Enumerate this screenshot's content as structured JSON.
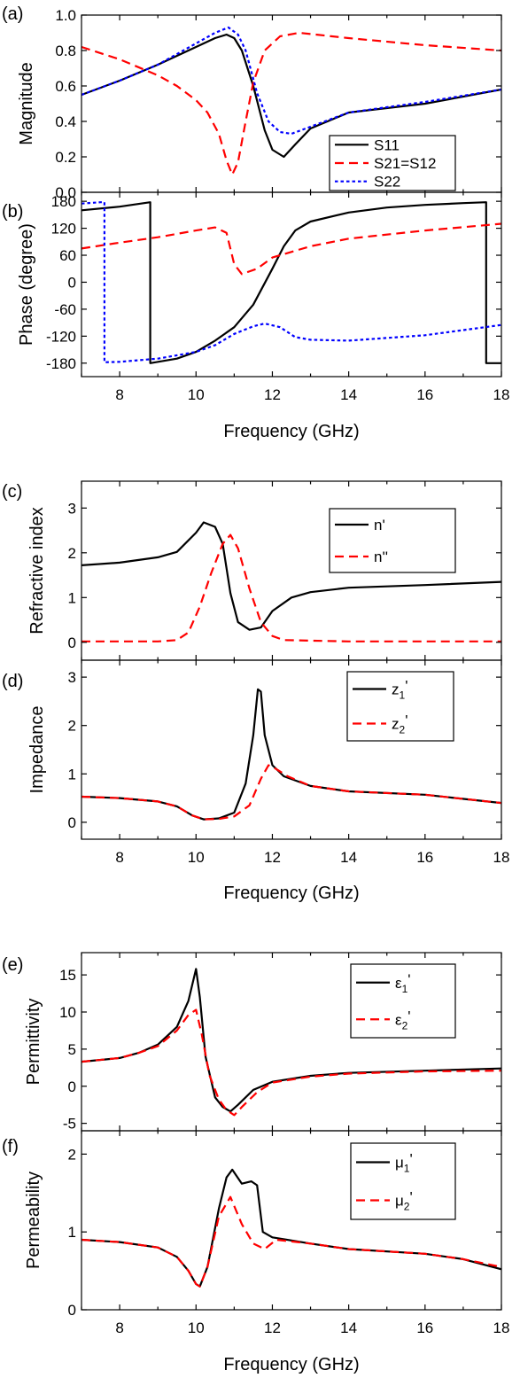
{
  "chart_data": [
    {
      "panel_label": "(a)",
      "type": "line",
      "ylabel": "Magnitude",
      "xlim": [
        7,
        18
      ],
      "ylim": [
        0,
        1.0
      ],
      "yticks": [
        "0.0",
        "0.2",
        "0.4",
        "0.6",
        "0.8",
        "1.0"
      ],
      "ytick_values": [
        0,
        0.2,
        0.4,
        0.6,
        0.8,
        1.0
      ],
      "legend_position": "bottom-right",
      "series": [
        {
          "name": "S11",
          "color": "#000000",
          "dash": "solid",
          "x": [
            7,
            8,
            9,
            10,
            10.5,
            10.8,
            11.0,
            11.2,
            11.5,
            11.8,
            12.0,
            12.3,
            12.6,
            13.0,
            14.0,
            16.0,
            18.0
          ],
          "y": [
            0.55,
            0.63,
            0.72,
            0.82,
            0.87,
            0.89,
            0.87,
            0.8,
            0.6,
            0.35,
            0.24,
            0.2,
            0.27,
            0.36,
            0.45,
            0.5,
            0.58
          ]
        },
        {
          "name": "S21=S12",
          "color": "#ff0000",
          "dash": "dashed",
          "x": [
            7,
            8,
            9,
            9.5,
            10,
            10.3,
            10.6,
            10.8,
            10.95,
            11.1,
            11.3,
            11.5,
            11.8,
            12.2,
            12.7,
            14.0,
            16.0,
            18.0
          ],
          "y": [
            0.82,
            0.75,
            0.66,
            0.6,
            0.52,
            0.45,
            0.33,
            0.18,
            0.1,
            0.17,
            0.4,
            0.62,
            0.8,
            0.88,
            0.9,
            0.87,
            0.83,
            0.8
          ]
        },
        {
          "name": "S22",
          "color": "#0000ff",
          "dash": "dotted",
          "x": [
            7,
            8,
            9,
            10,
            10.5,
            10.85,
            11.1,
            11.3,
            11.6,
            11.9,
            12.2,
            12.5,
            13.0,
            14.0,
            16.0,
            18.0
          ],
          "y": [
            0.55,
            0.63,
            0.72,
            0.84,
            0.9,
            0.93,
            0.89,
            0.8,
            0.56,
            0.4,
            0.34,
            0.33,
            0.37,
            0.45,
            0.51,
            0.58
          ]
        }
      ]
    },
    {
      "panel_label": "(b)",
      "type": "line",
      "ylabel": "Phase (degree)",
      "xlim": [
        7,
        18
      ],
      "ylim": [
        -210,
        200
      ],
      "yticks": [
        "180",
        "120",
        "60",
        "0",
        "-60",
        "-120",
        "-180"
      ],
      "ytick_values": [
        180,
        120,
        60,
        0,
        -60,
        -120,
        -180
      ],
      "xticks": [
        "8",
        "10",
        "12",
        "14",
        "16",
        "18"
      ],
      "xtick_values": [
        8,
        10,
        12,
        14,
        16,
        18
      ],
      "xlabel": "Frequency (GHz)",
      "series": [
        {
          "name": "S11",
          "color": "#000000",
          "dash": "solid",
          "x": [
            7,
            8,
            8.8,
            8.8,
            9.5,
            10,
            10.5,
            11,
            11.5,
            12,
            12.3,
            12.6,
            13,
            14,
            15,
            16,
            17,
            17.6,
            17.6,
            18
          ],
          "y": [
            160,
            168,
            178,
            -180,
            -170,
            -155,
            -130,
            -100,
            -50,
            30,
            80,
            115,
            135,
            155,
            166,
            172,
            176,
            178,
            -180,
            -180
          ]
        },
        {
          "name": "S21=S12",
          "color": "#ff0000",
          "dash": "dashed",
          "x": [
            7,
            8,
            9,
            10,
            10.5,
            10.8,
            11.0,
            11.2,
            11.6,
            12,
            13,
            14,
            16,
            18
          ],
          "y": [
            75,
            88,
            100,
            115,
            122,
            110,
            40,
            18,
            30,
            55,
            80,
            97,
            115,
            130
          ]
        },
        {
          "name": "S22",
          "color": "#0000ff",
          "dash": "dotted",
          "x": [
            7,
            7.5,
            7.6,
            7.6,
            8,
            9,
            10,
            10.5,
            11,
            11.5,
            11.8,
            12.2,
            12.6,
            13,
            14,
            16,
            18
          ],
          "y": [
            175,
            178,
            178,
            -178,
            -177,
            -170,
            -155,
            -140,
            -115,
            -98,
            -92,
            -100,
            -122,
            -128,
            -130,
            -118,
            -95
          ]
        }
      ]
    },
    {
      "panel_label": "(c)",
      "type": "line",
      "ylabel": "Refractive index",
      "xlim": [
        7,
        18
      ],
      "ylim": [
        -0.4,
        3.6
      ],
      "yticks": [
        "0",
        "1",
        "2",
        "3"
      ],
      "ytick_values": [
        0,
        1,
        2,
        3
      ],
      "legend_position": "top-right",
      "series": [
        {
          "name": "n'",
          "color": "#000000",
          "dash": "solid",
          "x": [
            7,
            8,
            9,
            9.5,
            10,
            10.2,
            10.5,
            10.7,
            10.9,
            11.1,
            11.4,
            11.7,
            12.0,
            12.5,
            13,
            14,
            16,
            18
          ],
          "y": [
            1.72,
            1.78,
            1.9,
            2.02,
            2.45,
            2.68,
            2.58,
            2.2,
            1.1,
            0.45,
            0.28,
            0.33,
            0.7,
            1.0,
            1.12,
            1.22,
            1.28,
            1.35
          ]
        },
        {
          "name": "n''",
          "color": "#ff0000",
          "dash": "dashed",
          "x": [
            7,
            9,
            9.5,
            9.8,
            10.1,
            10.4,
            10.7,
            10.9,
            11.1,
            11.4,
            11.7,
            12.0,
            12.3,
            14,
            18
          ],
          "y": [
            0.02,
            0.02,
            0.05,
            0.22,
            0.8,
            1.55,
            2.2,
            2.4,
            2.1,
            1.2,
            0.45,
            0.14,
            0.05,
            0.02,
            0.02
          ]
        }
      ]
    },
    {
      "panel_label": "(d)",
      "type": "line",
      "ylabel": "Impedance",
      "xlim": [
        7,
        18
      ],
      "ylim": [
        -0.35,
        3.35
      ],
      "yticks": [
        "0",
        "1",
        "2",
        "3"
      ],
      "ytick_values": [
        0,
        1,
        2,
        3
      ],
      "xticks": [
        "8",
        "10",
        "12",
        "14",
        "16",
        "18"
      ],
      "xtick_values": [
        8,
        10,
        12,
        14,
        16,
        18
      ],
      "xlabel": "Frequency (GHz)",
      "legend_position": "top-right",
      "series": [
        {
          "name": "z1'",
          "legend_main": "z",
          "legend_sub": "1",
          "legend_tail": "'",
          "color": "#000000",
          "dash": "solid",
          "x": [
            7,
            8,
            9,
            9.5,
            9.9,
            10.2,
            10.6,
            11.0,
            11.3,
            11.5,
            11.62,
            11.7,
            11.8,
            12.0,
            12.3,
            13,
            14,
            16,
            18
          ],
          "y": [
            0.53,
            0.5,
            0.43,
            0.33,
            0.14,
            0.06,
            0.08,
            0.2,
            0.8,
            1.8,
            2.75,
            2.7,
            1.8,
            1.18,
            0.95,
            0.75,
            0.64,
            0.57,
            0.4
          ]
        },
        {
          "name": "z2'",
          "legend_main": "z",
          "legend_sub": "2",
          "legend_tail": "'",
          "color": "#ff0000",
          "dash": "dashed",
          "x": [
            7,
            8,
            9,
            9.5,
            9.9,
            10.2,
            10.6,
            11.0,
            11.4,
            11.7,
            11.9,
            12.1,
            12.4,
            13,
            14,
            16,
            18
          ],
          "y": [
            0.53,
            0.5,
            0.43,
            0.33,
            0.14,
            0.06,
            0.07,
            0.12,
            0.35,
            0.9,
            1.18,
            1.1,
            0.95,
            0.75,
            0.64,
            0.57,
            0.4
          ]
        }
      ]
    },
    {
      "panel_label": "(e)",
      "type": "line",
      "ylabel": "Permittivity",
      "xlim": [
        7,
        18
      ],
      "ylim": [
        -6,
        18
      ],
      "yticks": [
        "15",
        "10",
        "5",
        "0",
        "-5"
      ],
      "ytick_values": [
        15,
        10,
        5,
        0,
        -5
      ],
      "legend_position": "top-right",
      "series": [
        {
          "name": "ε1'",
          "legend_main": "ε",
          "legend_sub": "1",
          "legend_tail": "'",
          "color": "#000000",
          "dash": "solid",
          "x": [
            7,
            8,
            8.5,
            9,
            9.5,
            9.8,
            10.0,
            10.1,
            10.25,
            10.5,
            10.7,
            10.9,
            11.1,
            11.5,
            12,
            13,
            14,
            16,
            18
          ],
          "y": [
            3.3,
            3.8,
            4.5,
            5.6,
            8.0,
            11.5,
            15.8,
            12.0,
            4.0,
            -1.5,
            -2.8,
            -3.4,
            -2.5,
            -0.5,
            0.6,
            1.4,
            1.8,
            2.1,
            2.4
          ]
        },
        {
          "name": "ε2'",
          "legend_main": "ε",
          "legend_sub": "2",
          "legend_tail": "'",
          "color": "#ff0000",
          "dash": "dashed",
          "x": [
            7,
            8,
            8.5,
            9,
            9.5,
            9.8,
            10.0,
            10.15,
            10.35,
            10.6,
            10.8,
            11.0,
            11.2,
            11.6,
            12,
            13,
            14,
            16,
            18
          ],
          "y": [
            3.3,
            3.8,
            4.5,
            5.4,
            7.5,
            9.6,
            10.3,
            7.0,
            1.5,
            -1.8,
            -3.2,
            -3.9,
            -2.8,
            -0.8,
            0.5,
            1.3,
            1.7,
            2.0,
            2.1
          ]
        }
      ]
    },
    {
      "panel_label": "(f)",
      "type": "line",
      "ylabel": "Permeability",
      "xlim": [
        7,
        18
      ],
      "ylim": [
        0,
        2.3
      ],
      "yticks": [
        "2",
        "1",
        "0"
      ],
      "ytick_values": [
        2,
        1,
        0
      ],
      "xticks": [
        "8",
        "10",
        "12",
        "14",
        "16",
        "18"
      ],
      "xtick_values": [
        8,
        10,
        12,
        14,
        16,
        18
      ],
      "xlabel": "Frequency (GHz)",
      "legend_position": "top-right",
      "series": [
        {
          "name": "μ1'",
          "legend_main": "μ",
          "legend_sub": "1",
          "legend_tail": "'",
          "color": "#000000",
          "dash": "solid",
          "x": [
            7,
            8,
            9,
            9.5,
            9.8,
            10.0,
            10.1,
            10.3,
            10.6,
            10.8,
            10.95,
            11.2,
            11.45,
            11.6,
            11.75,
            12.0,
            13,
            14,
            16,
            17,
            18
          ],
          "y": [
            0.9,
            0.87,
            0.8,
            0.68,
            0.5,
            0.33,
            0.3,
            0.55,
            1.3,
            1.7,
            1.8,
            1.62,
            1.65,
            1.6,
            1.0,
            0.93,
            0.85,
            0.78,
            0.72,
            0.65,
            0.52
          ]
        },
        {
          "name": "μ2'",
          "legend_main": "μ",
          "legend_sub": "2",
          "legend_tail": "'",
          "color": "#ff0000",
          "dash": "dashed",
          "x": [
            7,
            8,
            9,
            9.5,
            9.8,
            10.0,
            10.1,
            10.3,
            10.6,
            10.9,
            11.2,
            11.5,
            11.8,
            12.1,
            13,
            14,
            16,
            17,
            18
          ],
          "y": [
            0.9,
            0.87,
            0.8,
            0.68,
            0.5,
            0.33,
            0.3,
            0.55,
            1.2,
            1.45,
            1.1,
            0.85,
            0.78,
            0.9,
            0.85,
            0.78,
            0.72,
            0.65,
            0.55
          ]
        }
      ]
    }
  ]
}
